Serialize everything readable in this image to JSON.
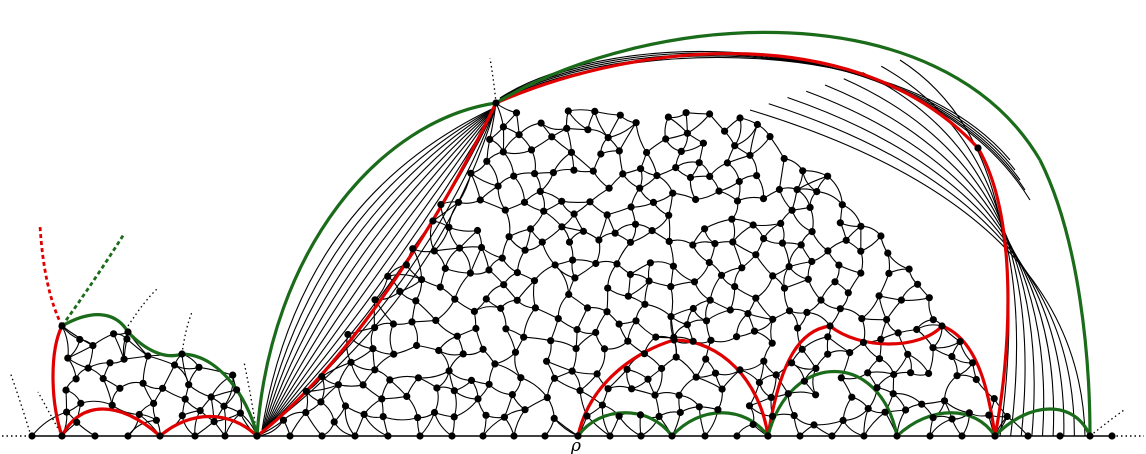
{
  "root_label": "ρ",
  "colors": {
    "background": "#ffffff",
    "edges": "#000000",
    "vertices": "#000000",
    "red_boundary": "#e00000",
    "green_boundary": "#1a6b1a"
  }
}
